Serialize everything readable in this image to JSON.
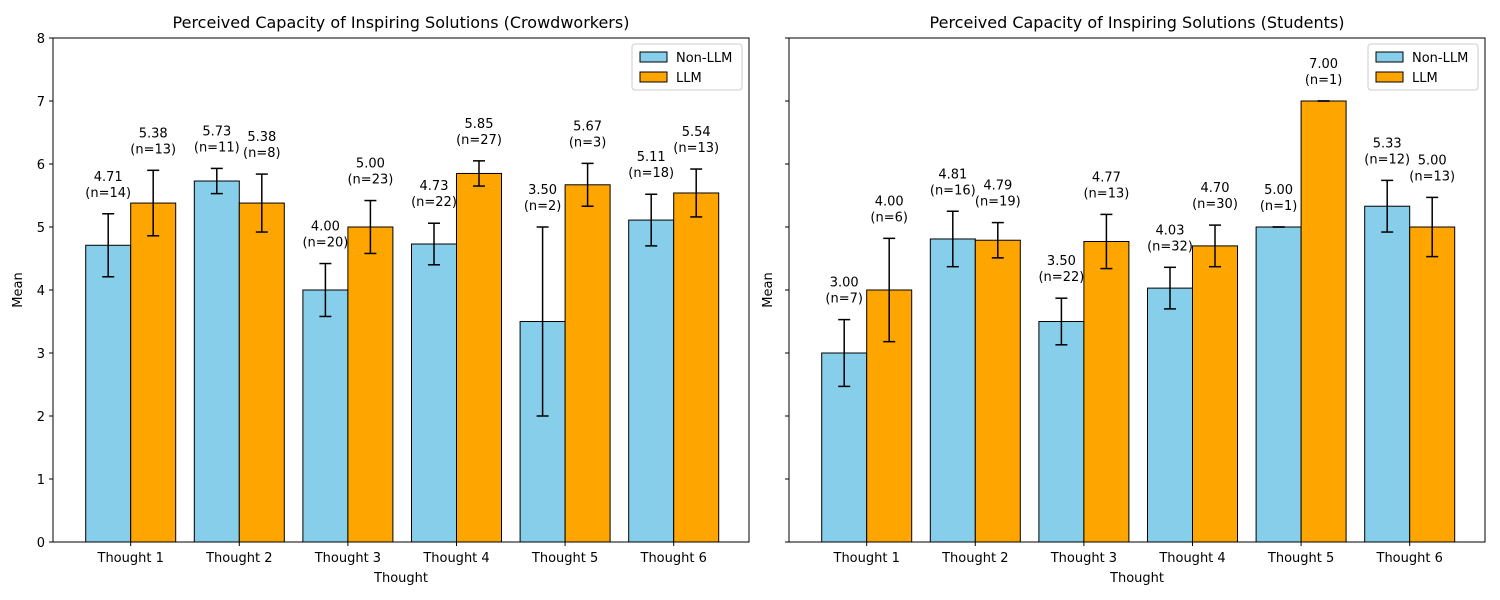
{
  "colors": {
    "non_llm": "#87CEEB",
    "llm": "#FFA500",
    "edge": "#000000"
  },
  "chart_data": [
    {
      "type": "bar",
      "title": "Perceived Capacity of Inspiring Solutions (Crowdworkers)",
      "xlabel": "Thought",
      "ylabel": "Mean",
      "ylim": [
        0,
        8
      ],
      "yticks": [
        "0",
        "1",
        "2",
        "3",
        "4",
        "5",
        "6",
        "7",
        "8"
      ],
      "legend_position": "top-right",
      "categories": [
        "Thought 1",
        "Thought 2",
        "Thought 3",
        "Thought 4",
        "Thought 5",
        "Thought 6"
      ],
      "series": [
        {
          "name": "Non-LLM",
          "values": [
            4.71,
            5.73,
            4.0,
            4.73,
            3.5,
            5.11
          ],
          "errors": [
            0.5,
            0.2,
            0.42,
            0.33,
            1.5,
            0.41
          ],
          "labels": [
            "4.71",
            "5.73",
            "4.00",
            "4.73",
            "3.50",
            "5.11"
          ],
          "n_labels": [
            "(n=14)",
            "(n=11)",
            "(n=20)",
            "(n=22)",
            "(n=2)",
            "(n=18)"
          ]
        },
        {
          "name": "LLM",
          "values": [
            5.38,
            5.38,
            5.0,
            5.85,
            5.67,
            5.54
          ],
          "errors": [
            0.52,
            0.46,
            0.42,
            0.2,
            0.34,
            0.38
          ],
          "labels": [
            "5.38",
            "5.38",
            "5.00",
            "5.85",
            "5.67",
            "5.54"
          ],
          "n_labels": [
            "(n=13)",
            "(n=8)",
            "(n=23)",
            "(n=27)",
            "(n=3)",
            "(n=13)"
          ]
        }
      ]
    },
    {
      "type": "bar",
      "title": "Perceived Capacity of Inspiring Solutions (Students)",
      "xlabel": "Thought",
      "ylabel": "Mean",
      "ylim": [
        0,
        8
      ],
      "yticks": [],
      "legend_position": "top-right",
      "categories": [
        "Thought 1",
        "Thought 2",
        "Thought 3",
        "Thought 4",
        "Thought 5",
        "Thought 6"
      ],
      "series": [
        {
          "name": "Non-LLM",
          "values": [
            3.0,
            4.81,
            3.5,
            4.03,
            5.0,
            5.33
          ],
          "errors": [
            0.53,
            0.44,
            0.37,
            0.33,
            0,
            0.41
          ],
          "labels": [
            "3.00",
            "4.81",
            "3.50",
            "4.03",
            "5.00",
            "5.33"
          ],
          "n_labels": [
            "(n=7)",
            "(n=16)",
            "(n=22)",
            "(n=32)",
            "(n=1)",
            "(n=12)"
          ]
        },
        {
          "name": "LLM",
          "values": [
            4.0,
            4.79,
            4.77,
            4.7,
            7.0,
            5.0
          ],
          "errors": [
            0.82,
            0.28,
            0.43,
            0.33,
            0,
            0.47
          ],
          "labels": [
            "4.00",
            "4.79",
            "4.77",
            "4.70",
            "7.00",
            "5.00"
          ],
          "n_labels": [
            "(n=6)",
            "(n=19)",
            "(n=13)",
            "(n=30)",
            "(n=1)",
            "(n=13)"
          ]
        }
      ]
    }
  ]
}
